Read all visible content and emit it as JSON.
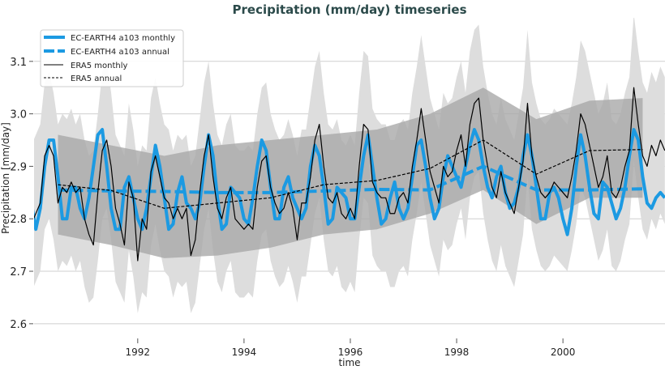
{
  "chart_data": {
    "type": "line",
    "title": "Precipitation (mm/day) timeseries",
    "xlabel": "time",
    "ylabel": "Precipitation [mm/day]",
    "xlim": [
      1990.05,
      2001.92
    ],
    "ylim": [
      2.572,
      3.183
    ],
    "grid": true,
    "legend_position": "top-left",
    "x_ticks": [
      1992,
      1994,
      1996,
      1998,
      2000
    ],
    "x_tick_labels": [
      "1992",
      "1994",
      "1996",
      "1998",
      "2000"
    ],
    "y_ticks": [
      2.6,
      2.7,
      2.8,
      2.9,
      3.0,
      3.1
    ],
    "y_tick_labels": [
      "2.6",
      "2.7",
      "2.8",
      "2.9",
      "3.0",
      "3.1"
    ],
    "monthly_start": 1990,
    "annual_x": [
      1990.5,
      1991.5,
      1992.5,
      1993.5,
      1994.5,
      1995.5,
      1996.5,
      1997.5,
      1998.5,
      1999.5,
      2000.5,
      2001.5
    ],
    "colors": {
      "model": "#1c9ae2",
      "era5": "#000000",
      "monthly_band": "#dddddd",
      "annual_band": "#a9a9a9"
    },
    "series": [
      {
        "name": "EC-EARTH4 a103 monthly",
        "style": "solid-thick",
        "values": [
          2.83,
          2.78,
          2.82,
          2.9,
          2.95,
          2.95,
          2.88,
          2.8,
          2.8,
          2.86,
          2.86,
          2.82,
          2.8,
          2.84,
          2.9,
          2.96,
          2.97,
          2.9,
          2.82,
          2.78,
          2.78,
          2.86,
          2.88,
          2.84,
          2.8,
          2.78,
          2.82,
          2.88,
          2.94,
          2.9,
          2.84,
          2.78,
          2.79,
          2.85,
          2.88,
          2.83,
          2.82,
          2.8,
          2.83,
          2.9,
          2.96,
          2.92,
          2.84,
          2.78,
          2.79,
          2.86,
          2.85,
          2.84,
          2.8,
          2.79,
          2.84,
          2.9,
          2.95,
          2.93,
          2.86,
          2.8,
          2.8,
          2.86,
          2.88,
          2.84,
          2.82,
          2.8,
          2.82,
          2.9,
          2.94,
          2.92,
          2.86,
          2.79,
          2.8,
          2.86,
          2.85,
          2.84,
          2.8,
          2.8,
          2.86,
          2.92,
          2.96,
          2.9,
          2.84,
          2.79,
          2.8,
          2.84,
          2.87,
          2.82,
          2.8,
          2.82,
          2.88,
          2.94,
          2.95,
          2.9,
          2.84,
          2.8,
          2.82,
          2.88,
          2.92,
          2.9,
          2.88,
          2.86,
          2.9,
          2.94,
          2.97,
          2.95,
          2.9,
          2.86,
          2.84,
          2.88,
          2.9,
          2.85,
          2.82,
          2.83,
          2.86,
          2.92,
          2.96,
          2.92,
          2.86,
          2.8,
          2.8,
          2.85,
          2.86,
          2.84,
          2.8,
          2.77,
          2.82,
          2.9,
          2.96,
          2.92,
          2.86,
          2.81,
          2.8,
          2.87,
          2.86,
          2.83,
          2.8,
          2.82,
          2.86,
          2.92,
          2.97,
          2.95,
          2.88,
          2.83,
          2.82,
          2.84,
          2.85,
          2.84
        ]
      },
      {
        "name": "EC-EARTH4 a103 annual",
        "style": "dashed-thick",
        "values": [
          2.855,
          2.853,
          2.852,
          2.85,
          2.85,
          2.853,
          2.856,
          2.855,
          2.9,
          2.855,
          2.855,
          2.857
        ]
      },
      {
        "name": "ERA5 monthly",
        "style": "solid-thin",
        "values": [
          2.79,
          2.81,
          2.83,
          2.92,
          2.94,
          2.92,
          2.83,
          2.86,
          2.85,
          2.87,
          2.85,
          2.86,
          2.8,
          2.77,
          2.75,
          2.85,
          2.93,
          2.95,
          2.9,
          2.82,
          2.79,
          2.75,
          2.87,
          2.84,
          2.72,
          2.8,
          2.78,
          2.89,
          2.92,
          2.88,
          2.84,
          2.83,
          2.8,
          2.82,
          2.8,
          2.82,
          2.73,
          2.76,
          2.85,
          2.92,
          2.96,
          2.88,
          2.82,
          2.8,
          2.84,
          2.86,
          2.8,
          2.79,
          2.78,
          2.79,
          2.78,
          2.86,
          2.91,
          2.92,
          2.86,
          2.83,
          2.81,
          2.82,
          2.85,
          2.82,
          2.76,
          2.83,
          2.83,
          2.88,
          2.95,
          2.98,
          2.9,
          2.84,
          2.83,
          2.85,
          2.81,
          2.8,
          2.82,
          2.8,
          2.9,
          2.98,
          2.97,
          2.87,
          2.85,
          2.84,
          2.84,
          2.81,
          2.81,
          2.84,
          2.85,
          2.83,
          2.9,
          2.95,
          3.01,
          2.95,
          2.89,
          2.86,
          2.83,
          2.9,
          2.88,
          2.89,
          2.93,
          2.96,
          2.9,
          2.98,
          3.02,
          3.03,
          2.95,
          2.9,
          2.86,
          2.84,
          2.89,
          2.85,
          2.83,
          2.81,
          2.86,
          2.91,
          3.02,
          2.92,
          2.88,
          2.85,
          2.84,
          2.85,
          2.87,
          2.86,
          2.85,
          2.84,
          2.88,
          2.93,
          3.0,
          2.98,
          2.94,
          2.9,
          2.86,
          2.88,
          2.92,
          2.85,
          2.84,
          2.86,
          2.9,
          2.93,
          3.05,
          2.98,
          2.92,
          2.9,
          2.94,
          2.92,
          2.95,
          2.93
        ]
      },
      {
        "name": "ERA5 annual",
        "style": "dashed-thin",
        "values": [
          2.865,
          2.854,
          2.82,
          2.83,
          2.84,
          2.865,
          2.873,
          2.896,
          2.95,
          2.885,
          2.93,
          2.932
        ]
      }
    ],
    "monthly_band": {
      "upper": [
        2.94,
        2.96,
        2.98,
        3.06,
        3.08,
        3.04,
        2.98,
        3.0,
        2.99,
        3.01,
        2.98,
        3.0,
        2.95,
        2.92,
        2.93,
        3.0,
        3.08,
        3.1,
        3.04,
        2.96,
        2.94,
        2.92,
        3.02,
        2.97,
        2.9,
        2.94,
        2.93,
        3.03,
        3.07,
        3.02,
        2.98,
        2.97,
        2.93,
        2.96,
        2.95,
        2.96,
        2.9,
        2.92,
        2.99,
        3.06,
        3.1,
        3.02,
        2.96,
        2.94,
        2.98,
        3.0,
        2.94,
        2.93,
        2.93,
        2.94,
        2.93,
        3.0,
        3.05,
        3.06,
        3.0,
        2.97,
        2.95,
        2.96,
        2.99,
        2.96,
        2.92,
        2.97,
        2.97,
        3.03,
        3.09,
        3.12,
        3.04,
        2.98,
        2.97,
        2.99,
        2.95,
        2.94,
        2.96,
        2.94,
        3.04,
        3.12,
        3.11,
        3.01,
        2.99,
        2.98,
        2.98,
        2.95,
        2.95,
        2.98,
        2.99,
        2.97,
        3.04,
        3.09,
        3.15,
        3.09,
        3.03,
        3.0,
        2.97,
        3.04,
        3.02,
        3.03,
        3.07,
        3.1,
        3.04,
        3.12,
        3.16,
        3.17,
        3.09,
        3.04,
        3.0,
        2.98,
        3.03,
        2.99,
        2.97,
        2.95,
        3.0,
        3.05,
        3.16,
        3.06,
        3.02,
        2.99,
        2.98,
        2.99,
        3.01,
        3.0,
        2.99,
        2.98,
        3.02,
        3.07,
        3.14,
        3.12,
        3.08,
        3.04,
        3.0,
        3.02,
        3.06,
        2.99,
        2.98,
        3.0,
        3.04,
        3.07,
        3.19,
        3.12,
        3.06,
        3.04,
        3.08,
        3.06,
        3.09,
        3.07
      ],
      "lower": [
        2.66,
        2.68,
        2.7,
        2.78,
        2.8,
        2.76,
        2.7,
        2.72,
        2.71,
        2.73,
        2.7,
        2.72,
        2.67,
        2.64,
        2.65,
        2.72,
        2.8,
        2.82,
        2.76,
        2.68,
        2.66,
        2.64,
        2.74,
        2.69,
        2.62,
        2.66,
        2.65,
        2.75,
        2.79,
        2.74,
        2.7,
        2.69,
        2.65,
        2.68,
        2.67,
        2.68,
        2.62,
        2.64,
        2.71,
        2.78,
        2.82,
        2.74,
        2.68,
        2.66,
        2.7,
        2.72,
        2.66,
        2.65,
        2.65,
        2.66,
        2.65,
        2.72,
        2.77,
        2.78,
        2.72,
        2.69,
        2.67,
        2.68,
        2.71,
        2.68,
        2.64,
        2.69,
        2.69,
        2.75,
        2.81,
        2.84,
        2.76,
        2.7,
        2.69,
        2.71,
        2.67,
        2.66,
        2.68,
        2.66,
        2.76,
        2.84,
        2.83,
        2.73,
        2.71,
        2.7,
        2.7,
        2.67,
        2.67,
        2.7,
        2.71,
        2.69,
        2.76,
        2.81,
        2.87,
        2.81,
        2.75,
        2.72,
        2.69,
        2.76,
        2.74,
        2.75,
        2.79,
        2.82,
        2.76,
        2.84,
        2.88,
        2.89,
        2.81,
        2.76,
        2.72,
        2.7,
        2.75,
        2.71,
        2.69,
        2.67,
        2.72,
        2.77,
        2.88,
        2.78,
        2.74,
        2.71,
        2.7,
        2.71,
        2.73,
        2.72,
        2.71,
        2.7,
        2.74,
        2.79,
        2.86,
        2.84,
        2.8,
        2.76,
        2.72,
        2.74,
        2.78,
        2.71,
        2.7,
        2.72,
        2.76,
        2.79,
        2.91,
        2.84,
        2.78,
        2.76,
        2.8,
        2.78,
        2.81,
        2.79
      ]
    },
    "annual_band": {
      "upper": [
        2.96,
        2.94,
        2.92,
        2.94,
        2.95,
        2.96,
        2.97,
        3.0,
        3.05,
        2.99,
        3.025,
        3.03
      ],
      "lower": [
        2.77,
        2.75,
        2.725,
        2.73,
        2.745,
        2.77,
        2.78,
        2.81,
        2.855,
        2.79,
        2.84,
        2.84
      ]
    }
  }
}
